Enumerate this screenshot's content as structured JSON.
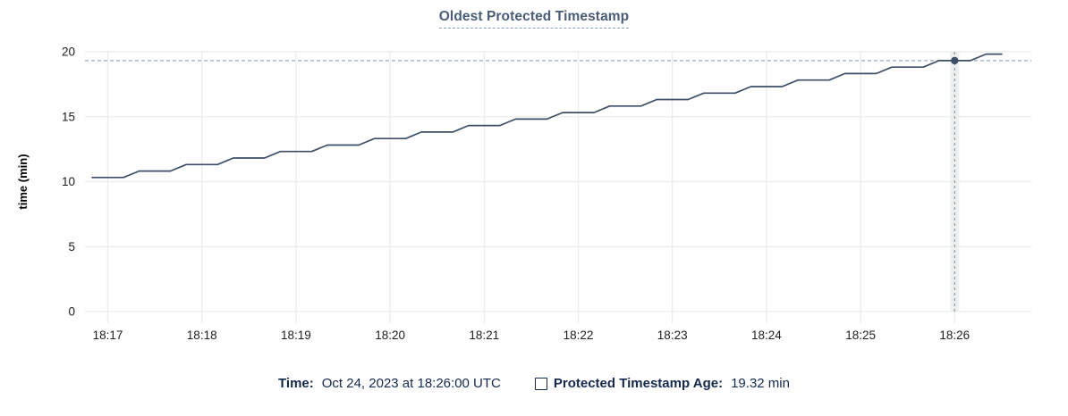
{
  "colors": {
    "line": "#3d4e68",
    "point": "#3d4e68",
    "grid": "#ececec",
    "hover_band": "#efefef",
    "crosshair_h": "#a7b6c6",
    "crosshair_v": "#96abb4",
    "title": "#4a5c78",
    "title_underline": "#8e9fb8",
    "legend_text": "#14294e",
    "tick_text": "#1c1e21",
    "axis_label": "#000000"
  },
  "legend": {
    "time_label": "Time:",
    "time_value": "Oct 24, 2023 at 18:26:00 UTC",
    "series_label": "Protected Timestamp Age:",
    "series_value": "19.32 min"
  },
  "chart_data": {
    "type": "line",
    "title": "Oldest Protected Timestamp",
    "xlabel": "",
    "ylabel": "time (min)",
    "ylim": [
      0,
      20
    ],
    "y_ticks": [
      0,
      5,
      10,
      15,
      20
    ],
    "x_ticks": [
      "18:17",
      "18:18",
      "18:19",
      "18:20",
      "18:21",
      "18:22",
      "18:23",
      "18:24",
      "18:25",
      "18:26"
    ],
    "x_anchor": "18:17",
    "grid": true,
    "legend_position": "bottom",
    "series": [
      {
        "name": "Protected Timestamp Age",
        "unit": "min",
        "points": [
          [
            "18:16:50",
            10.32
          ],
          [
            "18:17:00",
            10.32
          ],
          [
            "18:17:10",
            10.32
          ],
          [
            "18:17:20",
            10.82
          ],
          [
            "18:17:30",
            10.82
          ],
          [
            "18:17:40",
            10.82
          ],
          [
            "18:17:50",
            11.32
          ],
          [
            "18:18:00",
            11.32
          ],
          [
            "18:18:10",
            11.32
          ],
          [
            "18:18:20",
            11.82
          ],
          [
            "18:18:30",
            11.82
          ],
          [
            "18:18:40",
            11.82
          ],
          [
            "18:18:50",
            12.32
          ],
          [
            "18:19:00",
            12.32
          ],
          [
            "18:19:10",
            12.32
          ],
          [
            "18:19:20",
            12.82
          ],
          [
            "18:19:30",
            12.82
          ],
          [
            "18:19:40",
            12.82
          ],
          [
            "18:19:50",
            13.32
          ],
          [
            "18:20:00",
            13.32
          ],
          [
            "18:20:10",
            13.32
          ],
          [
            "18:20:20",
            13.82
          ],
          [
            "18:20:30",
            13.82
          ],
          [
            "18:20:40",
            13.82
          ],
          [
            "18:20:50",
            14.32
          ],
          [
            "18:21:00",
            14.32
          ],
          [
            "18:21:10",
            14.32
          ],
          [
            "18:21:20",
            14.82
          ],
          [
            "18:21:30",
            14.82
          ],
          [
            "18:21:40",
            14.82
          ],
          [
            "18:21:50",
            15.32
          ],
          [
            "18:22:00",
            15.32
          ],
          [
            "18:22:10",
            15.32
          ],
          [
            "18:22:20",
            15.82
          ],
          [
            "18:22:30",
            15.82
          ],
          [
            "18:22:40",
            15.82
          ],
          [
            "18:22:50",
            16.32
          ],
          [
            "18:23:00",
            16.32
          ],
          [
            "18:23:10",
            16.32
          ],
          [
            "18:23:20",
            16.82
          ],
          [
            "18:23:30",
            16.82
          ],
          [
            "18:23:40",
            16.82
          ],
          [
            "18:23:50",
            17.32
          ],
          [
            "18:24:00",
            17.32
          ],
          [
            "18:24:10",
            17.32
          ],
          [
            "18:24:20",
            17.82
          ],
          [
            "18:24:30",
            17.82
          ],
          [
            "18:24:40",
            17.82
          ],
          [
            "18:24:50",
            18.32
          ],
          [
            "18:25:00",
            18.32
          ],
          [
            "18:25:10",
            18.32
          ],
          [
            "18:25:20",
            18.82
          ],
          [
            "18:25:30",
            18.82
          ],
          [
            "18:25:40",
            18.82
          ],
          [
            "18:25:50",
            19.32
          ],
          [
            "18:26:00",
            19.32
          ],
          [
            "18:26:10",
            19.32
          ],
          [
            "18:26:20",
            19.82
          ],
          [
            "18:26:30",
            19.82
          ]
        ]
      }
    ],
    "highlight": {
      "t": "18:26:00",
      "v": 19.32,
      "date_label": "Oct 24, 2023 at 18:26:00 UTC",
      "value_label": "19.32 min"
    }
  }
}
